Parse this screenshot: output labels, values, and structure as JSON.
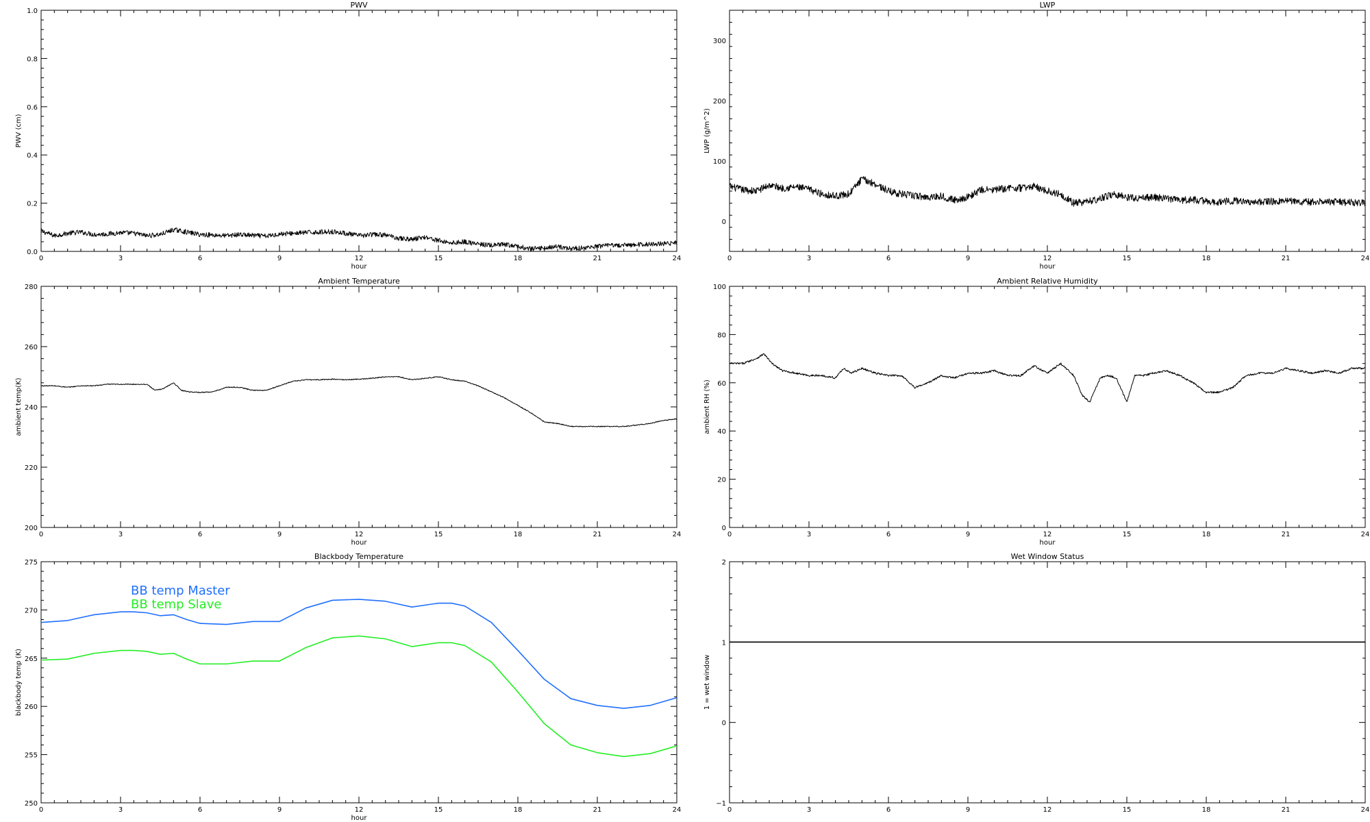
{
  "chart_data": [
    {
      "id": "pwv",
      "type": "line",
      "title": "PWV",
      "xlabel": "hour",
      "ylabel": "PWV (cm)",
      "xlim": [
        0,
        24
      ],
      "ylim": [
        0.0,
        1.0
      ],
      "xticks": [
        "0",
        "3",
        "6",
        "9",
        "12",
        "15",
        "18",
        "21",
        "24"
      ],
      "yticks": [
        "0.0",
        "0.2",
        "0.4",
        "0.6",
        "0.8",
        "1.0"
      ],
      "noise": 0.01,
      "series": [
        {
          "color": "#000000",
          "x": [
            0,
            0.5,
            1,
            1.5,
            2,
            2.5,
            3,
            3.5,
            4,
            4.5,
            5,
            5.5,
            6,
            6.5,
            7,
            7.5,
            8,
            8.5,
            9,
            9.5,
            10,
            10.5,
            11,
            11.5,
            12,
            12.5,
            13,
            13.5,
            14,
            14.5,
            15,
            15.5,
            16,
            16.5,
            17,
            17.5,
            18,
            18.5,
            19,
            19.5,
            20,
            20.5,
            21,
            21.5,
            22,
            22.5,
            23,
            23.5,
            24
          ],
          "y": [
            0.085,
            0.065,
            0.075,
            0.08,
            0.07,
            0.072,
            0.078,
            0.075,
            0.065,
            0.07,
            0.09,
            0.08,
            0.07,
            0.068,
            0.065,
            0.07,
            0.066,
            0.063,
            0.072,
            0.075,
            0.078,
            0.08,
            0.082,
            0.075,
            0.065,
            0.07,
            0.068,
            0.055,
            0.05,
            0.06,
            0.045,
            0.035,
            0.04,
            0.03,
            0.025,
            0.028,
            0.02,
            0.01,
            0.015,
            0.02,
            0.012,
            0.015,
            0.02,
            0.025,
            0.025,
            0.028,
            0.03,
            0.032,
            0.035
          ]
        }
      ]
    },
    {
      "id": "lwp",
      "type": "line",
      "title": "LWP",
      "xlabel": "hour",
      "ylabel": "LWP (g/m^2)",
      "xlim": [
        0,
        24
      ],
      "ylim": [
        -50,
        350
      ],
      "xticks": [
        "0",
        "3",
        "6",
        "9",
        "12",
        "15",
        "18",
        "21",
        "24"
      ],
      "yticks": [
        "0",
        "100",
        "200",
        "300"
      ],
      "ytick_values": [
        0,
        100,
        200,
        300
      ],
      "noise": 6,
      "series": [
        {
          "color": "#000000",
          "x": [
            0,
            0.5,
            1,
            1.5,
            2,
            2.5,
            3,
            3.5,
            4,
            4.5,
            5,
            5.5,
            6,
            6.5,
            7,
            7.5,
            8,
            8.5,
            9,
            9.5,
            10,
            10.5,
            11,
            11.5,
            12,
            12.5,
            13,
            13.5,
            14,
            14.5,
            15,
            15.5,
            16,
            16.5,
            17,
            17.5,
            18,
            18.5,
            19,
            19.5,
            20,
            20.5,
            21,
            21.5,
            22,
            22.5,
            23,
            23.5,
            24
          ],
          "y": [
            58,
            52,
            50,
            60,
            55,
            57,
            53,
            45,
            42,
            45,
            70,
            62,
            50,
            45,
            42,
            40,
            42,
            35,
            40,
            52,
            52,
            55,
            55,
            58,
            50,
            45,
            30,
            32,
            38,
            45,
            40,
            38,
            40,
            38,
            35,
            36,
            33,
            32,
            34,
            33,
            32,
            33,
            34,
            32,
            32,
            33,
            32,
            31,
            30
          ]
        }
      ]
    },
    {
      "id": "ambient-temp",
      "type": "line",
      "title": "Ambient Temperature",
      "xlabel": "hour",
      "ylabel": "ambient temp(K)",
      "xlim": [
        0,
        24
      ],
      "ylim": [
        200,
        280
      ],
      "xticks": [
        "0",
        "3",
        "6",
        "9",
        "12",
        "15",
        "18",
        "21",
        "24"
      ],
      "yticks": [
        "200",
        "220",
        "240",
        "260",
        "280"
      ],
      "noise": 0.15,
      "series": [
        {
          "color": "#000000",
          "x": [
            0,
            0.5,
            1,
            1.5,
            2,
            2.5,
            3,
            3.5,
            4,
            4.3,
            4.6,
            5,
            5.3,
            5.6,
            6,
            6.5,
            7,
            7.5,
            8,
            8.5,
            9,
            9.5,
            10,
            10.5,
            11,
            11.5,
            12,
            12.5,
            13,
            13.5,
            14,
            14.5,
            15,
            15.5,
            16,
            16.5,
            17,
            17.5,
            18,
            18.5,
            19,
            19.5,
            20,
            20.5,
            21,
            21.5,
            22,
            22.5,
            23,
            23.5,
            24
          ],
          "y": [
            247,
            247,
            246.5,
            247,
            247,
            247.5,
            247.5,
            247.5,
            247.5,
            245.5,
            246,
            248,
            245.5,
            245,
            244.8,
            245,
            246.5,
            246.5,
            245.5,
            245.5,
            247,
            248.5,
            249,
            249,
            249.2,
            249,
            249.2,
            249.5,
            250,
            250,
            249,
            249.5,
            250,
            249,
            248.5,
            247,
            245,
            243,
            240.5,
            238,
            235,
            234.5,
            233.5,
            233.5,
            233.5,
            233.5,
            233.5,
            234,
            234.5,
            235.5,
            236
          ]
        }
      ]
    },
    {
      "id": "ambient-rh",
      "type": "line",
      "title": "Ambient Relative Humidity",
      "xlabel": "hour",
      "ylabel": "ambient RH (%)",
      "xlim": [
        0,
        24
      ],
      "ylim": [
        0,
        100
      ],
      "xticks": [
        "0",
        "3",
        "6",
        "9",
        "12",
        "15",
        "18",
        "21",
        "24"
      ],
      "yticks": [
        "0",
        "20",
        "40",
        "60",
        "80",
        "100"
      ],
      "noise": 0.4,
      "series": [
        {
          "color": "#000000",
          "x": [
            0,
            0.5,
            1,
            1.3,
            1.6,
            2,
            2.5,
            3,
            3.5,
            4,
            4.3,
            4.6,
            5,
            5.5,
            6,
            6.5,
            7,
            7.5,
            8,
            8.5,
            9,
            9.5,
            10,
            10.5,
            11,
            11.5,
            12,
            12.5,
            13,
            13.3,
            13.6,
            14,
            14.3,
            14.6,
            15,
            15.3,
            15.6,
            16,
            16.5,
            17,
            17.5,
            18,
            18.5,
            19,
            19.5,
            20,
            20.5,
            21,
            21.5,
            22,
            22.5,
            23,
            23.5,
            24
          ],
          "y": [
            68,
            68,
            70,
            72,
            68,
            65,
            64,
            63,
            63,
            62,
            66,
            64,
            66,
            64,
            63,
            63,
            58,
            60,
            63,
            62,
            64,
            64,
            65,
            63,
            63,
            67,
            64,
            68,
            63,
            55,
            52,
            62,
            63,
            62,
            52,
            63,
            63,
            64,
            65,
            63,
            60,
            56,
            56,
            58,
            63,
            64,
            64,
            66,
            65,
            64,
            65,
            64,
            66,
            66
          ]
        }
      ]
    },
    {
      "id": "blackbody-temp",
      "type": "line",
      "title": "Blackbody Temperature",
      "xlabel": "hour",
      "ylabel": "blackbody temp (K)",
      "xlim": [
        0,
        24
      ],
      "ylim": [
        250,
        275
      ],
      "xticks": [
        "0",
        "3",
        "6",
        "9",
        "12",
        "15",
        "18",
        "21",
        "24"
      ],
      "yticks": [
        "250",
        "255",
        "260",
        "265",
        "270",
        "275"
      ],
      "noise": 0,
      "legend_position": "upper-left",
      "series": [
        {
          "name": "BB temp Master",
          "color": "#1f6fff",
          "x": [
            0,
            1,
            2,
            3,
            3.5,
            4,
            4.5,
            5,
            5.5,
            6,
            7,
            8,
            9,
            10,
            11,
            12,
            13,
            14,
            15,
            15.5,
            16,
            17,
            18,
            19,
            20,
            21,
            22,
            23,
            24
          ],
          "y": [
            268.7,
            268.9,
            269.5,
            269.8,
            269.8,
            269.7,
            269.4,
            269.5,
            269.0,
            268.6,
            268.5,
            268.8,
            268.8,
            270.2,
            271.0,
            271.1,
            270.9,
            270.3,
            270.7,
            270.7,
            270.4,
            268.7,
            265.8,
            262.8,
            260.8,
            260.1,
            259.8,
            260.1,
            260.9
          ]
        },
        {
          "name": "BB temp Slave",
          "color": "#22ee22",
          "x": [
            0,
            1,
            2,
            3,
            3.5,
            4,
            4.5,
            5,
            5.5,
            6,
            7,
            8,
            9,
            10,
            11,
            12,
            13,
            14,
            15,
            15.5,
            16,
            17,
            18,
            19,
            20,
            21,
            22,
            23,
            24
          ],
          "y": [
            264.8,
            264.9,
            265.5,
            265.8,
            265.8,
            265.7,
            265.4,
            265.5,
            264.9,
            264.4,
            264.4,
            264.7,
            264.7,
            266.1,
            267.1,
            267.3,
            267.0,
            266.2,
            266.6,
            266.6,
            266.3,
            264.6,
            261.5,
            258.2,
            256.0,
            255.2,
            254.8,
            255.1,
            255.9
          ]
        }
      ]
    },
    {
      "id": "wet-window",
      "type": "line",
      "title": "Wet Window Status",
      "xlabel": "",
      "ylabel": "1 = wet window",
      "xlim": [
        0,
        24
      ],
      "ylim": [
        -1,
        2
      ],
      "xticks": [
        "0",
        "3",
        "6",
        "9",
        "12",
        "15",
        "18",
        "21",
        "24"
      ],
      "yticks": [
        "−1",
        "0",
        "1",
        "2"
      ],
      "ytick_values": [
        -1,
        0,
        1,
        2
      ],
      "noise": 0,
      "series": [
        {
          "color": "#000000",
          "x": [
            0,
            24
          ],
          "y": [
            1,
            1
          ]
        }
      ]
    }
  ]
}
